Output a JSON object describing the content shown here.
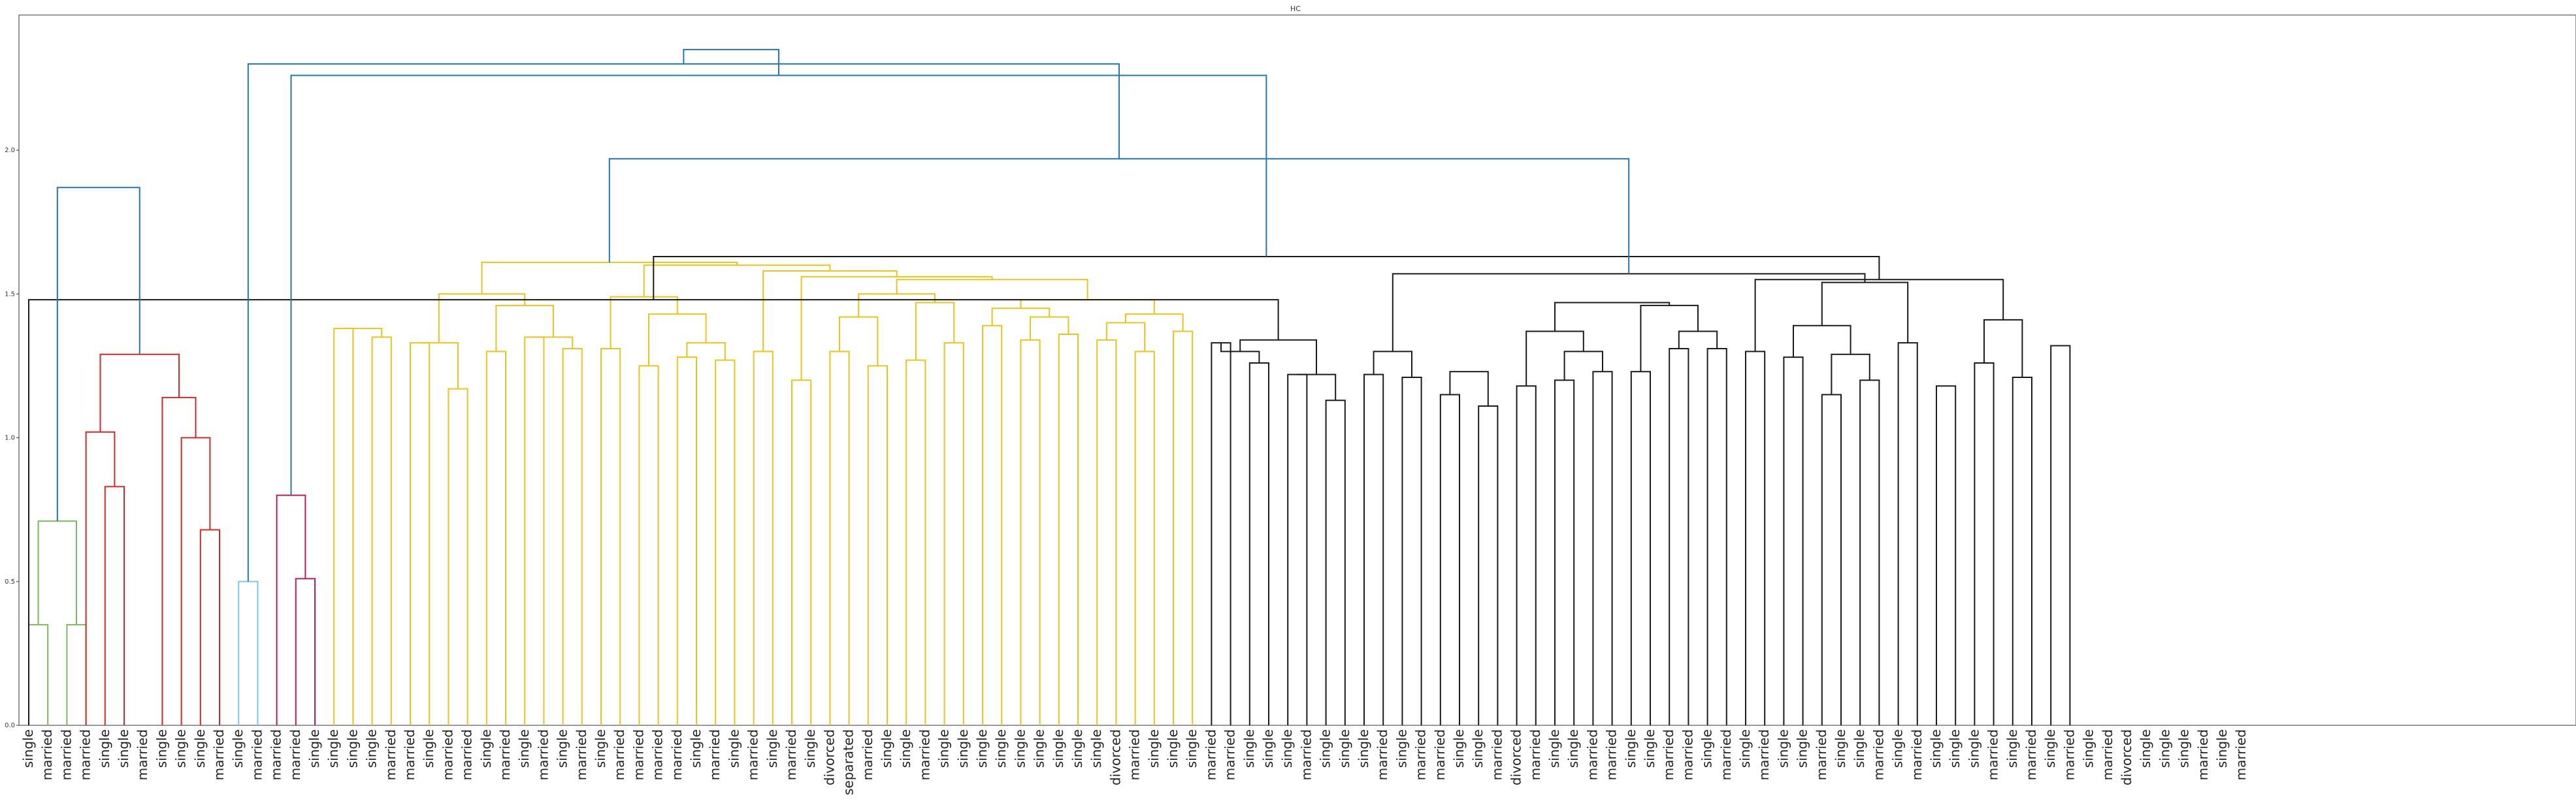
{
  "chart_data": {
    "type": "dendrogram",
    "title": "HC",
    "xlabel": "",
    "ylabel": "",
    "ylim": [
      0,
      2.47
    ],
    "yticks": [
      "0.0",
      "0.5",
      "1.0",
      "1.5",
      "2.0"
    ],
    "ytick_values": [
      0,
      0.5,
      1.0,
      1.5,
      2.0
    ],
    "grid": false,
    "colors": {
      "green": "#7fb55e",
      "red": "#d62728",
      "lightblue": "#7ec8e3",
      "magenta": "#c2185b",
      "yellow": "#e6c619",
      "black": "#1a1a1a",
      "root": "#1f77b4"
    },
    "leaves": [
      "single",
      "married",
      "married",
      "married",
      "single",
      "single",
      "married",
      "single",
      "single",
      "single",
      "married",
      "single",
      "married",
      "married",
      "married",
      "single",
      "single",
      "single",
      "single",
      "married",
      "married",
      "single",
      "married",
      "married",
      "single",
      "married",
      "single",
      "married",
      "single",
      "married",
      "single",
      "married",
      "married",
      "married",
      "married",
      "single",
      "married",
      "single",
      "married",
      "single",
      "married",
      "single",
      "divorced",
      "separated",
      "married",
      "single",
      "single",
      "married",
      "single",
      "single",
      "single",
      "single",
      "single",
      "single",
      "single",
      "single",
      "single",
      "divorced",
      "married",
      "single",
      "single",
      "single",
      "married",
      "married",
      "single",
      "single",
      "single",
      "married",
      "single",
      "single",
      "single",
      "married",
      "single",
      "married",
      "married",
      "single",
      "single",
      "married",
      "divorced",
      "married",
      "single",
      "single",
      "married",
      "married",
      "single",
      "single",
      "married",
      "married",
      "single",
      "married",
      "single",
      "married",
      "single",
      "single",
      "married",
      "single",
      "single",
      "married",
      "single",
      "married",
      "single",
      "single",
      "single",
      "married",
      "single",
      "married",
      "single",
      "married",
      "single",
      "married",
      "divorced",
      "single",
      "single",
      "single",
      "married",
      "single",
      "married"
    ],
    "merges": [
      {
        "l": 0,
        "r": 1,
        "h": 0.35,
        "c": "green"
      },
      {
        "l": 2,
        "r": 3,
        "h": 0.35,
        "c": "green"
      },
      {
        "l": "n1",
        "r": "n0",
        "h": 0.71,
        "c": "green"
      },
      {
        "l": 4,
        "r": 5,
        "h": 0.83,
        "c": "red"
      },
      {
        "l": 3,
        "r": "n3",
        "h": 1.02,
        "c": "red"
      },
      {
        "l": 9,
        "r": 10,
        "h": 0.68,
        "c": "red"
      },
      {
        "l": 8,
        "r": "n5",
        "h": 1.0,
        "c": "red"
      },
      {
        "l": 7,
        "r": "n6",
        "h": 1.14,
        "c": "red"
      },
      {
        "l": "n4",
        "r": "n7",
        "h": 1.29,
        "c": "red"
      },
      {
        "l": 11,
        "r": 12,
        "h": 0.5,
        "c": "lightblue"
      },
      {
        "l": 14,
        "r": 15,
        "h": 0.51,
        "c": "magenta"
      },
      {
        "l": 13,
        "r": "n10",
        "h": 0.8,
        "c": "magenta"
      },
      {
        "l": 16,
        "r": 17,
        "h": 1.38,
        "c": "yellow"
      },
      {
        "l": 18,
        "r": 19,
        "h": 1.35,
        "c": "yellow"
      },
      {
        "l": "n12",
        "r": "n13",
        "h": 1.38,
        "c": "yellow"
      },
      {
        "l": 20,
        "r": 21,
        "h": 1.33,
        "c": "yellow"
      },
      {
        "l": 22,
        "r": 23,
        "h": 1.17,
        "c": "yellow"
      },
      {
        "l": "n15",
        "r": "n16",
        "h": 1.33,
        "c": "yellow"
      },
      {
        "l": 24,
        "r": 25,
        "h": 1.3,
        "c": "yellow"
      },
      {
        "l": 26,
        "r": 27,
        "h": 1.35,
        "c": "yellow"
      },
      {
        "l": 28,
        "r": 29,
        "h": 1.31,
        "c": "yellow"
      },
      {
        "l": "n19",
        "r": "n20",
        "h": 1.35,
        "c": "yellow"
      },
      {
        "l": "n18",
        "r": "n21",
        "h": 1.46,
        "c": "yellow"
      },
      {
        "l": "n17",
        "r": "n22",
        "h": 1.5,
        "c": "yellow"
      },
      {
        "l": 30,
        "r": 31,
        "h": 1.31,
        "c": "yellow"
      },
      {
        "l": 32,
        "r": 33,
        "h": 1.25,
        "c": "yellow"
      },
      {
        "l": 34,
        "r": 35,
        "h": 1.28,
        "c": "yellow"
      },
      {
        "l": 36,
        "r": 37,
        "h": 1.27,
        "c": "yellow"
      },
      {
        "l": "n26",
        "r": "n27",
        "h": 1.33,
        "c": "yellow"
      },
      {
        "l": "n25",
        "r": "n28",
        "h": 1.43,
        "c": "yellow"
      },
      {
        "l": "n24",
        "r": "n29",
        "h": 1.49,
        "c": "yellow"
      },
      {
        "l": 38,
        "r": 39,
        "h": 1.3,
        "c": "yellow"
      },
      {
        "l": 40,
        "r": 41,
        "h": 1.2,
        "c": "yellow"
      },
      {
        "l": 42,
        "r": 43,
        "h": 1.3,
        "c": "yellow"
      },
      {
        "l": 44,
        "r": 45,
        "h": 1.25,
        "c": "yellow"
      },
      {
        "l": "n33",
        "r": "n34",
        "h": 1.42,
        "c": "yellow"
      },
      {
        "l": 46,
        "r": 47,
        "h": 1.27,
        "c": "yellow"
      },
      {
        "l": 48,
        "r": 49,
        "h": 1.33,
        "c": "yellow"
      },
      {
        "l": "n36",
        "r": "n37",
        "h": 1.47,
        "c": "yellow"
      },
      {
        "l": "n35",
        "r": "n38",
        "h": 1.5,
        "c": "yellow"
      },
      {
        "l": 50,
        "r": 51,
        "h": 1.39,
        "c": "yellow"
      },
      {
        "l": 52,
        "r": 53,
        "h": 1.34,
        "c": "yellow"
      },
      {
        "l": 54,
        "r": 55,
        "h": 1.36,
        "c": "yellow"
      },
      {
        "l": "n41",
        "r": "n42",
        "h": 1.42,
        "c": "yellow"
      },
      {
        "l": "n40",
        "r": "n43",
        "h": 1.45,
        "c": "yellow"
      },
      {
        "l": 56,
        "r": 57,
        "h": 1.34,
        "c": "yellow"
      },
      {
        "l": 58,
        "r": 59,
        "h": 1.3,
        "c": "yellow"
      },
      {
        "l": "n45",
        "r": "n46",
        "h": 1.4,
        "c": "yellow"
      },
      {
        "l": 60,
        "r": 61,
        "h": 1.37,
        "c": "yellow"
      },
      {
        "l": "n47",
        "r": "n48",
        "h": 1.43,
        "c": "yellow"
      },
      {
        "l": "n44",
        "r": "n49",
        "h": 1.48,
        "c": "yellow"
      },
      {
        "l": "n39",
        "r": "n50",
        "h": 1.55,
        "c": "yellow"
      },
      {
        "l": "n32",
        "r": "n51",
        "h": 1.56,
        "c": "yellow"
      },
      {
        "l": "n31",
        "r": "n52",
        "h": 1.58,
        "c": "yellow"
      },
      {
        "l": "n30",
        "r": "n53",
        "h": 1.6,
        "c": "yellow"
      },
      {
        "l": "n23",
        "r": "n54",
        "h": 1.61,
        "c": "yellow"
      },
      {
        "l": 62,
        "r": 63,
        "h": 1.33,
        "c": "black"
      },
      {
        "l": 64,
        "r": 65,
        "h": 1.26,
        "c": "black"
      },
      {
        "l": "n56",
        "r": "n57",
        "h": 1.3,
        "c": "black"
      },
      {
        "l": 66,
        "r": 67,
        "h": 1.22,
        "c": "black"
      },
      {
        "l": 68,
        "r": 69,
        "h": 1.13,
        "c": "black"
      },
      {
        "l": "n59",
        "r": "n60",
        "h": 1.22,
        "c": "black"
      },
      {
        "l": "n58",
        "r": "n61",
        "h": 1.34,
        "c": "black"
      },
      {
        "l": "n55b",
        "r": "n62",
        "h": 1.48,
        "c": "black"
      },
      {
        "l": 70,
        "r": 71,
        "h": 1.22,
        "c": "black"
      },
      {
        "l": 72,
        "r": 73,
        "h": 1.21,
        "c": "black"
      },
      {
        "l": "n64",
        "r": "n65",
        "h": 1.3,
        "c": "black"
      },
      {
        "l": 74,
        "r": 75,
        "h": 1.15,
        "c": "black"
      },
      {
        "l": 76,
        "r": 77,
        "h": 1.11,
        "c": "black"
      },
      {
        "l": "n67",
        "r": "n68",
        "h": 1.23,
        "c": "black"
      },
      {
        "l": 78,
        "r": 79,
        "h": 1.18,
        "c": "black"
      },
      {
        "l": 80,
        "r": 81,
        "h": 1.2,
        "c": "black"
      },
      {
        "l": 82,
        "r": 83,
        "h": 1.23,
        "c": "black"
      },
      {
        "l": "n71",
        "r": "n72",
        "h": 1.3,
        "c": "black"
      },
      {
        "l": "n70",
        "r": "n73",
        "h": 1.37,
        "c": "black"
      },
      {
        "l": 84,
        "r": 85,
        "h": 1.23,
        "c": "black"
      },
      {
        "l": 86,
        "r": 87,
        "h": 1.31,
        "c": "black"
      },
      {
        "l": 88,
        "r": 89,
        "h": 1.31,
        "c": "black"
      },
      {
        "l": "n76",
        "r": "n77",
        "h": 1.37,
        "c": "black"
      },
      {
        "l": "n75",
        "r": "n78",
        "h": 1.46,
        "c": "black"
      },
      {
        "l": "n74",
        "r": "n79",
        "h": 1.47,
        "c": "black"
      },
      {
        "l": 90,
        "r": 91,
        "h": 1.3,
        "c": "black"
      },
      {
        "l": 92,
        "r": 93,
        "h": 1.28,
        "c": "black"
      },
      {
        "l": 94,
        "r": 95,
        "h": 1.15,
        "c": "black"
      },
      {
        "l": 96,
        "r": 97,
        "h": 1.2,
        "c": "black"
      },
      {
        "l": "n84",
        "r": "n83",
        "h": 1.29,
        "c": "black"
      },
      {
        "l": "n82",
        "r": "n85",
        "h": 1.39,
        "c": "black"
      },
      {
        "l": 98,
        "r": 99,
        "h": 1.33,
        "c": "black"
      },
      {
        "l": 100,
        "r": 101,
        "h": 1.18,
        "c": "black"
      },
      {
        "l": 102,
        "r": 103,
        "h": 1.26,
        "c": "black"
      },
      {
        "l": 104,
        "r": 105,
        "h": 1.21,
        "c": "black"
      },
      {
        "l": 106,
        "r": 107,
        "h": 1.32,
        "c": "black"
      },
      {
        "l": "n89",
        "r": "n90",
        "h": 1.41,
        "c": "black"
      },
      {
        "l": "n86",
        "r": "n87",
        "h": 1.54,
        "c": "black"
      },
      {
        "l": "n81",
        "r": "n92",
        "h": 1.55,
        "c": "black"
      },
      {
        "l": "n66",
        "r": "n93",
        "h": 1.57,
        "c": "black"
      },
      {
        "l": "n63",
        "r": "n94",
        "h": 1.63,
        "c": "black"
      },
      {
        "l": "n55",
        "r": "n95",
        "h": 1.97,
        "c": "root"
      },
      {
        "l": "n11",
        "r": "n96",
        "h": 2.26,
        "c": "root"
      },
      {
        "l": "n9",
        "r": "n97",
        "h": 2.3,
        "c": "root"
      },
      {
        "l": "n2",
        "r": "n8",
        "h": 1.87,
        "c": "root"
      },
      {
        "l": "n99",
        "r": "n98",
        "h": 2.35,
        "c": "root"
      }
    ]
  }
}
